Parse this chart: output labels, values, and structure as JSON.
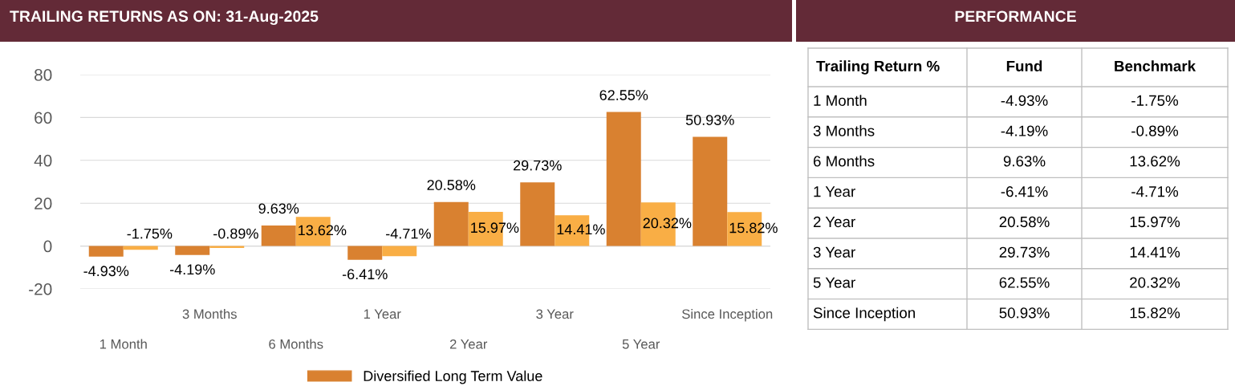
{
  "chart_data": [
    {
      "type": "bar",
      "title": "TRAILING RETURNS AS ON: 31-Aug-2025",
      "categories": [
        "1 Month",
        "3 Months",
        "6 Months",
        "1 Year",
        "2 Year",
        "3 Year",
        "5 Year",
        "Since Inception"
      ],
      "series": [
        {
          "name": "Diversified Long Term Value",
          "color": "#d98130",
          "values": [
            -4.93,
            -4.19,
            9.63,
            -6.41,
            20.58,
            29.73,
            62.55,
            50.93
          ],
          "value_labels": [
            "-4.93%",
            "-4.19%",
            "9.63%",
            "-6.41%",
            "20.58%",
            "29.73%",
            "62.55%",
            "50.93%"
          ]
        },
        {
          "color": "#f9ae45",
          "values": [
            -1.75,
            -0.89,
            13.62,
            -4.71,
            15.97,
            14.41,
            20.32,
            15.82
          ],
          "value_labels": [
            "-1.75%",
            "-0.89%",
            "13.62%",
            "-4.71%",
            "15.97%",
            "14.41%",
            "20.32%",
            "15.82%"
          ]
        }
      ],
      "ylim": [
        -20,
        80
      ],
      "yticks": [
        -20,
        0,
        20,
        40,
        60,
        80
      ],
      "grid": "y",
      "legend": "bottom"
    },
    {
      "type": "other",
      "title": "PERFORMANCE",
      "ylabel": "Trailing Return %",
      "categories": [
        "1 Month",
        "3 Months",
        "6 Months",
        "1 Year",
        "2 Year",
        "3 Year",
        "5 Year",
        "Since Inception"
      ],
      "series": [
        {
          "name": "Fund",
          "values": [
            -4.93,
            -4.19,
            9.63,
            -6.41,
            20.58,
            29.73,
            62.55,
            50.93
          ],
          "value_labels": [
            "-4.93%",
            "-4.19%",
            "9.63%",
            "-6.41%",
            "20.58%",
            "29.73%",
            "62.55%",
            "50.93%"
          ]
        },
        {
          "name": "Benchmark",
          "values": [
            -1.75,
            -0.89,
            13.62,
            -4.71,
            15.97,
            14.41,
            20.32,
            15.82
          ],
          "value_labels": [
            "-1.75%",
            "-0.89%",
            "13.62%",
            "-4.71%",
            "15.97%",
            "14.41%",
            "20.32%",
            "15.82%"
          ]
        }
      ]
    }
  ]
}
